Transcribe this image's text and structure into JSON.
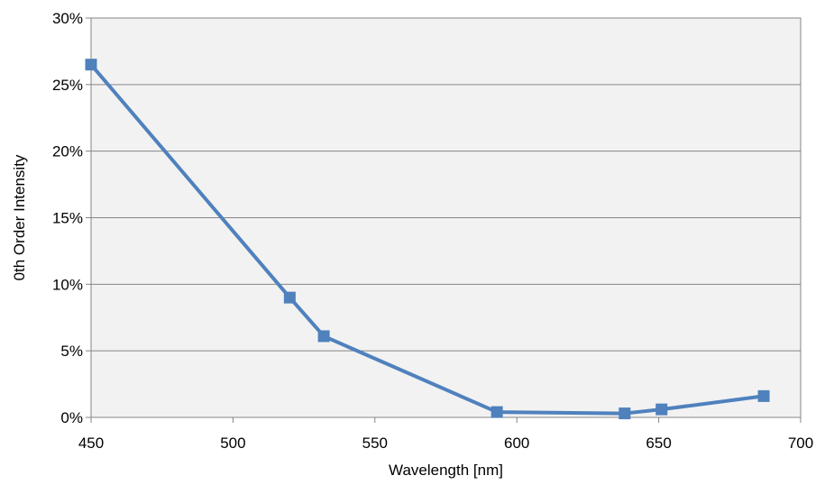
{
  "chart_data": {
    "type": "line",
    "title": "",
    "xlabel": "Wavelength [nm]",
    "ylabel": "0th Order Intensity",
    "xlim": [
      450,
      700
    ],
    "ylim": [
      0,
      0.3
    ],
    "x_ticks": [
      450,
      500,
      550,
      600,
      650,
      700
    ],
    "y_ticks": [
      0,
      0.05,
      0.1,
      0.15,
      0.2,
      0.25,
      0.3
    ],
    "x_tick_labels": [
      "450",
      "500",
      "550",
      "600",
      "650",
      "700"
    ],
    "y_tick_labels": [
      "0%",
      "5%",
      "10%",
      "15%",
      "20%",
      "25%",
      "30%"
    ],
    "grid": "horizontal",
    "legend": "none",
    "series": [
      {
        "color": "#4f81bd",
        "marker": "square",
        "x": [
          450,
          520,
          532,
          593,
          638,
          651,
          687
        ],
        "y": [
          0.265,
          0.09,
          0.061,
          0.004,
          0.003,
          0.006,
          0.016
        ]
      }
    ],
    "colors": {
      "plot_background": "#f2f2f2",
      "gridline": "#868686",
      "axis": "#868686"
    }
  }
}
